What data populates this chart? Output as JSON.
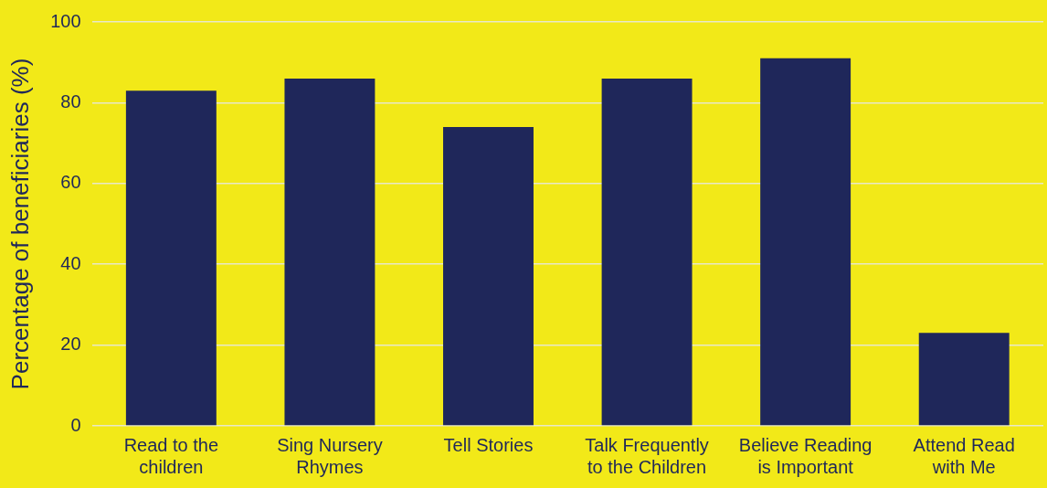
{
  "chart_data": {
    "type": "bar",
    "ylabel": "Percentage of beneficiaries (%)",
    "categories": [
      "Read to the children",
      "Sing Nursery Rhymes",
      "Tell Stories",
      "Talk Frequently to the Children",
      "Believe Reading is Important",
      "Attend Read with Me"
    ],
    "values": [
      83,
      86,
      74,
      86,
      91,
      23
    ],
    "color": "#1f275a",
    "ylim": [
      0,
      100
    ],
    "yticks": [
      0,
      20,
      40,
      60,
      80,
      100
    ],
    "grid": "y",
    "legend": false
  }
}
